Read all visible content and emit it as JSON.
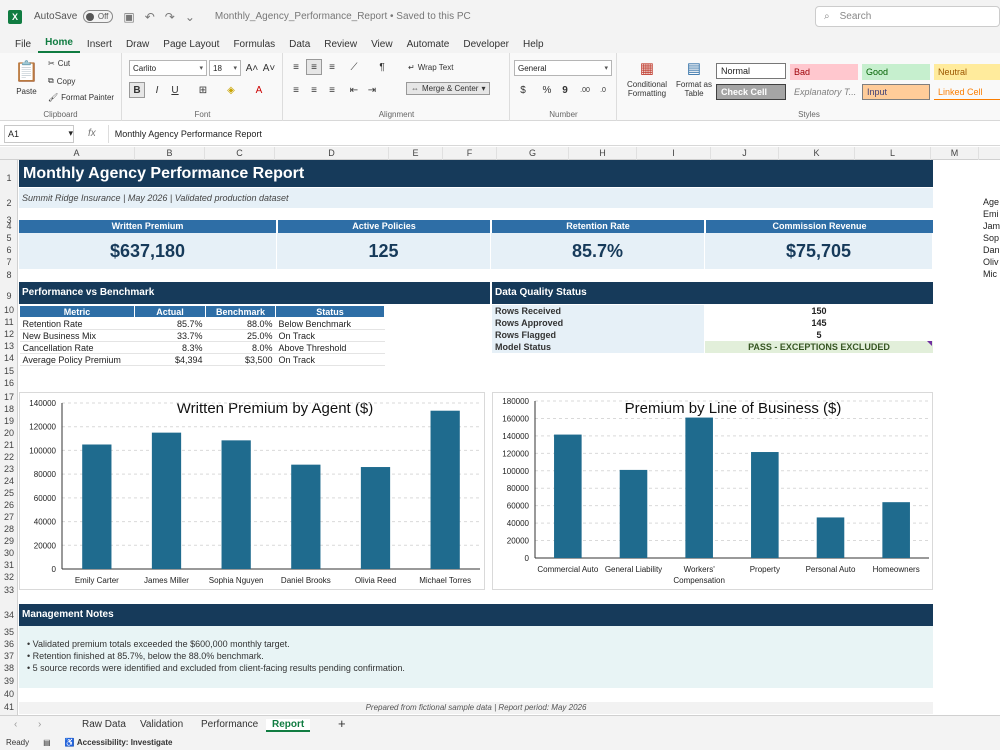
{
  "titlebar": {
    "autosave_label": "AutoSave",
    "autosave_state": "Off",
    "doc_title": "Monthly_Agency_Performance_Report  •  Saved to this PC",
    "search_placeholder": "Search"
  },
  "menu": [
    "File",
    "Home",
    "Insert",
    "Draw",
    "Page Layout",
    "Formulas",
    "Data",
    "Review",
    "View",
    "Automate",
    "Developer",
    "Help"
  ],
  "ribbon": {
    "clipboard": {
      "paste": "Paste",
      "cut": "Cut",
      "copy": "Copy",
      "format_painter": "Format Painter",
      "label": "Clipboard"
    },
    "font": {
      "name": "Carlito",
      "size": "18",
      "bold": "B",
      "italic": "I",
      "underline": "U",
      "label": "Font"
    },
    "alignment": {
      "wrap": "Wrap Text",
      "merge": "Merge & Center",
      "label": "Alignment"
    },
    "number": {
      "format": "General",
      "currency": "$",
      "percent": "%",
      "comma": "9",
      "label": "Number"
    },
    "styles": {
      "conditional": "Conditional Formatting",
      "format_table": "Format as Table",
      "normal": "Normal",
      "bad": "Bad",
      "good": "Good",
      "neutral": "Neutral",
      "check": "Check Cell",
      "explanatory": "Explanatory T...",
      "input": "Input",
      "linked": "Linked Cell",
      "label": "Styles"
    }
  },
  "formula_bar": {
    "cell": "A1",
    "fx": "fx",
    "content": "Monthly Agency Performance Report"
  },
  "columns": [
    "A",
    "B",
    "C",
    "D",
    "E",
    "F",
    "G",
    "H",
    "I",
    "J",
    "K",
    "L",
    "M"
  ],
  "rows": [
    "1",
    "2",
    "3",
    "4",
    "5",
    "6",
    "7",
    "8",
    "9",
    "10",
    "11",
    "12",
    "13",
    "14",
    "15",
    "16",
    "17",
    "18",
    "19",
    "20",
    "21",
    "22",
    "23",
    "24",
    "25",
    "26",
    "27",
    "28",
    "29",
    "30",
    "31",
    "32",
    "33",
    "34",
    "35",
    "36",
    "37",
    "38",
    "39",
    "40",
    "41"
  ],
  "report": {
    "title": "Monthly Agency Performance Report",
    "subtitle": "Summit Ridge Insurance | May 2026 | Validated production dataset",
    "kpis": [
      {
        "label": "Written Premium",
        "value": "$637,180"
      },
      {
        "label": "Active Policies",
        "value": "125"
      },
      {
        "label": "Retention Rate",
        "value": "85.7%"
      },
      {
        "label": "Commission Revenue",
        "value": "$75,705"
      }
    ],
    "perf_title": "Performance vs Benchmark",
    "perf_headers": [
      "Metric",
      "Actual",
      "Benchmark",
      "Status"
    ],
    "perf_rows": [
      [
        "Retention Rate",
        "85.7%",
        "88.0%",
        "Below Benchmark"
      ],
      [
        "New Business Mix",
        "33.7%",
        "25.0%",
        "On Track"
      ],
      [
        "Cancellation Rate",
        "8.3%",
        "8.0%",
        "Above Threshold"
      ],
      [
        "Average Policy Premium",
        "$4,394",
        "$3,500",
        "On Track"
      ]
    ],
    "dq_title": "Data Quality Status",
    "dq_rows": [
      {
        "label": "Rows Received",
        "value": "150"
      },
      {
        "label": "Rows Approved",
        "value": "145"
      },
      {
        "label": "Rows Flagged",
        "value": "5"
      },
      {
        "label": "Model Status",
        "value": "PASS - EXCEPTIONS EXCLUDED"
      }
    ],
    "notes_title": "Management Notes",
    "notes": [
      "• Validated premium totals exceeded the $600,000 monthly target.",
      "• Retention finished at 85.7%, below the 88.0% benchmark.",
      "• 5 source records were identified and excluded from client-facing results pending confirmation."
    ],
    "footer": "Prepared from fictional sample data | Report period: May 2026",
    "side_list": [
      "Age",
      "Emi",
      "Jam",
      "Sop",
      "Dan",
      "Oliv",
      "Mic"
    ]
  },
  "chart_data": [
    {
      "type": "bar",
      "title": "Written Premium by Agent ($)",
      "categories": [
        "Emily Carter",
        "James Miller",
        "Sophia Nguyen",
        "Daniel Brooks",
        "Olivia Reed",
        "Michael Torres"
      ],
      "values": [
        105000,
        115000,
        108500,
        88000,
        86000,
        133500
      ],
      "ylim": [
        0,
        140000
      ],
      "yticks": [
        "0",
        "20000",
        "40000",
        "60000",
        "80000",
        "100000",
        "120000",
        "140000"
      ],
      "grid": true,
      "color": "#1f6b8e"
    },
    {
      "type": "bar",
      "title": "Premium by Line of Business ($)",
      "categories": [
        "Commercial Auto",
        "General Liability",
        "Workers' Compensation",
        "Property",
        "Personal Auto",
        "Homeowners"
      ],
      "values": [
        141500,
        101000,
        161000,
        121500,
        46500,
        64000
      ],
      "ylim": [
        0,
        180000
      ],
      "yticks": [
        "0",
        "20000",
        "40000",
        "60000",
        "80000",
        "100000",
        "120000",
        "140000",
        "160000",
        "180000"
      ],
      "grid": true,
      "color": "#1f6b8e"
    }
  ],
  "sheet_tabs": [
    "Raw Data",
    "Validation",
    "Performance",
    "Report"
  ],
  "status": {
    "ready": "Ready",
    "accessibility": "Accessibility: Investigate"
  }
}
